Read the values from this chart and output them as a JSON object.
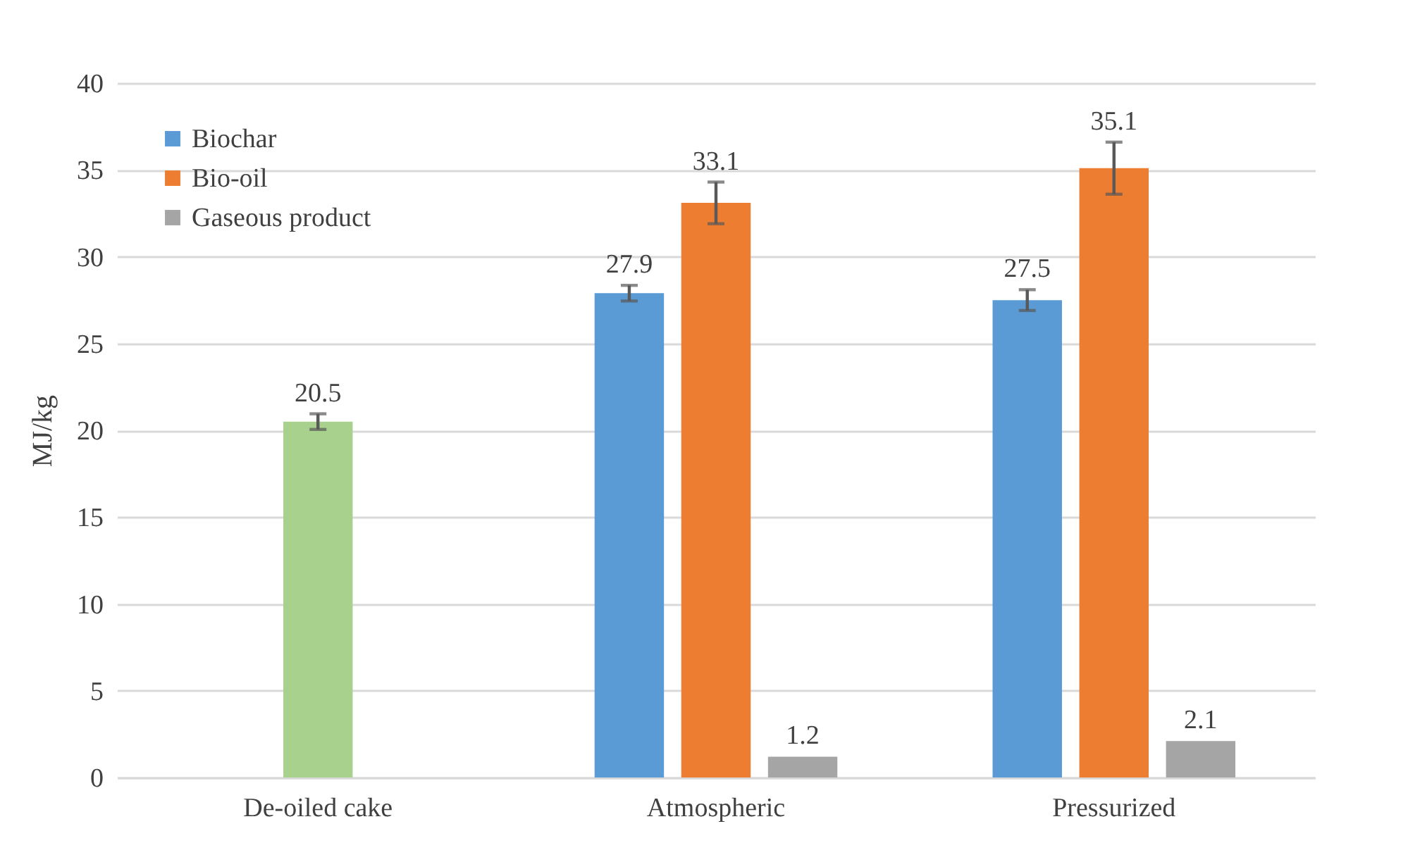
{
  "chart_data": {
    "type": "bar",
    "ylabel": "MJ/kg",
    "categories": [
      "De-oiled cake",
      "Atmospheric",
      "Pressurized"
    ],
    "series": [
      {
        "name": "Biochar",
        "color": "#5b9bd5",
        "values": [
          null,
          27.9,
          27.5
        ],
        "errors": [
          null,
          0.45,
          0.6
        ]
      },
      {
        "name": "Bio-oil",
        "color": "#ed7d31",
        "colors": [
          "#a9d18e",
          "#ed7d31",
          "#ed7d31"
        ],
        "values": [
          20.5,
          33.1,
          35.1
        ],
        "errors": [
          0.45,
          1.2,
          1.5
        ]
      },
      {
        "name": "Gaseous product",
        "color": "#a5a5a5",
        "values": [
          null,
          1.2,
          2.1
        ]
      }
    ],
    "ylim": [
      0,
      40
    ],
    "yticks": [
      0,
      5,
      10,
      15,
      20,
      25,
      30,
      35,
      40
    ],
    "grid": "y",
    "legend": "top left",
    "data_labels": true
  }
}
